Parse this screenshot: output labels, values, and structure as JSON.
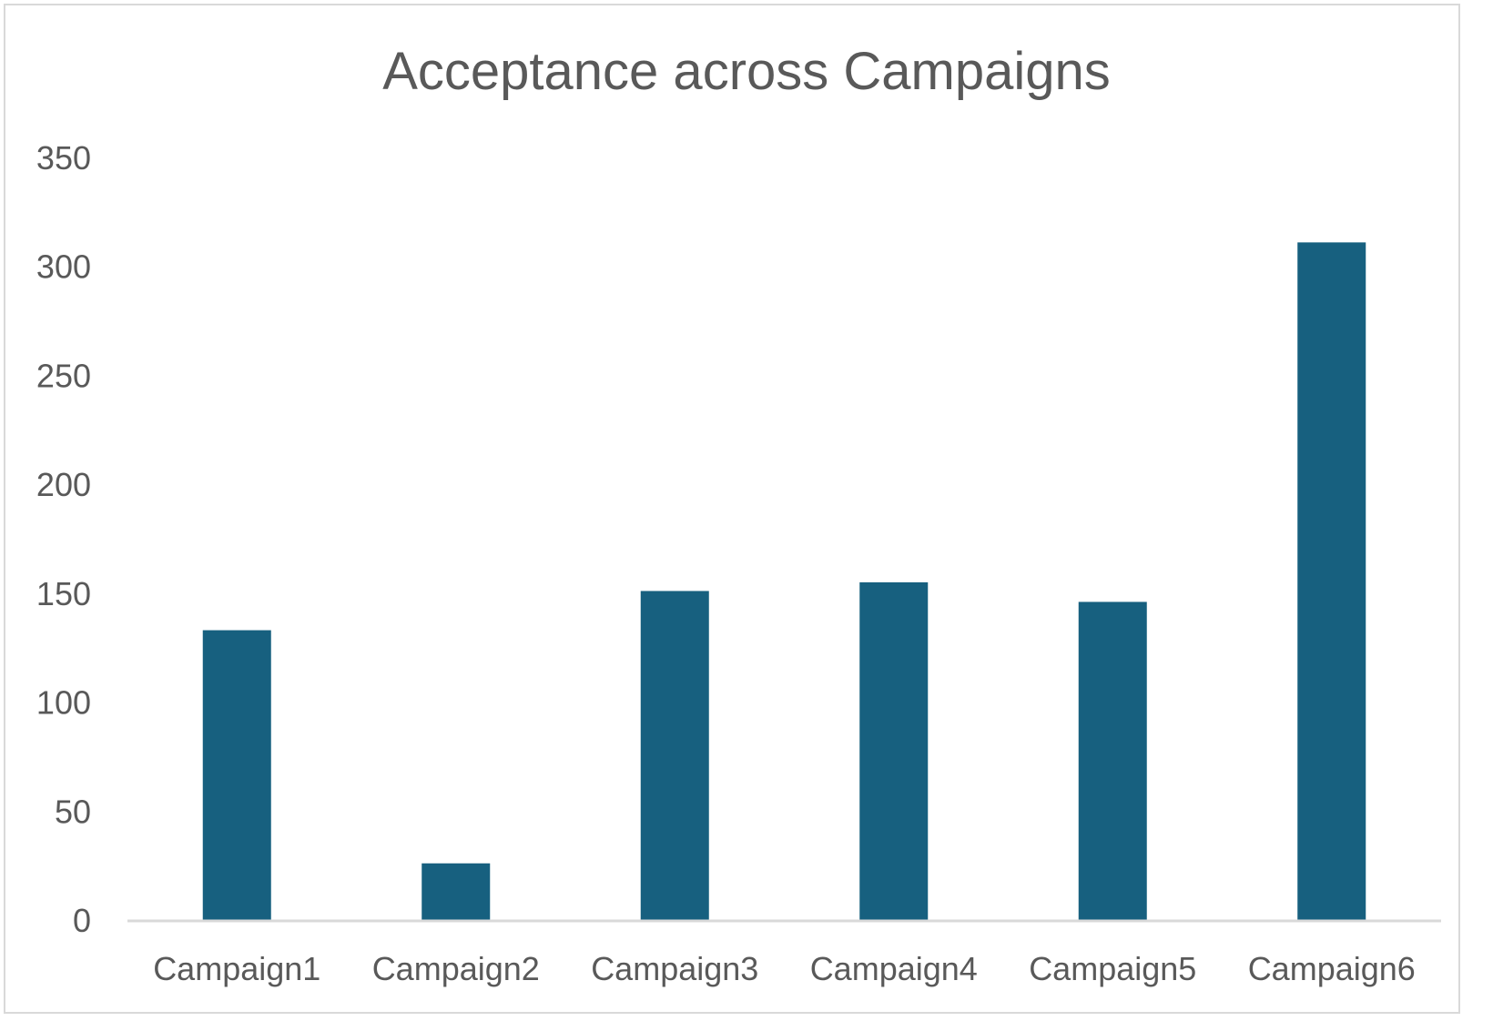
{
  "chart_data": {
    "type": "bar",
    "title": "Acceptance across Campaigns",
    "xlabel": "",
    "ylabel": "",
    "categories": [
      "Campaign1",
      "Campaign2",
      "Campaign3",
      "Campaign4",
      "Campaign5",
      "Campaign6"
    ],
    "values": [
      133,
      26,
      151,
      155,
      146,
      311
    ],
    "ylim": [
      0,
      350
    ],
    "yticks": [
      0,
      50,
      100,
      150,
      200,
      250,
      300,
      350
    ],
    "grid": false,
    "legend": "none",
    "bar_color": "#17607f",
    "axis_color": "#d9d9d9",
    "text_color": "#595959"
  }
}
